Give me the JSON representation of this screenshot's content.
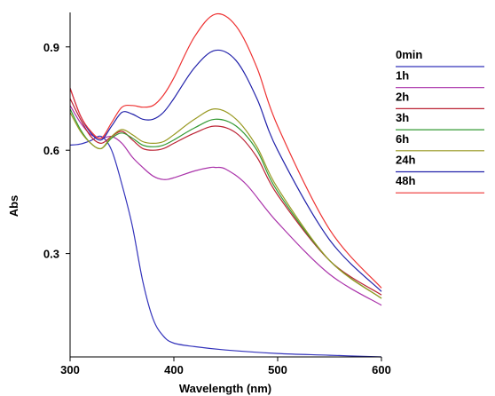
{
  "chart_data": {
    "type": "line",
    "title": "",
    "xlabel": "Wavelength (nm)",
    "ylabel": "Abs",
    "xlim": [
      300,
      600
    ],
    "ylim": [
      0.0,
      1.0
    ],
    "x_ticks": [
      300,
      400,
      500,
      600
    ],
    "y_ticks": [
      0.3,
      0.6,
      0.9
    ],
    "y_tick_labels": [
      "0.3",
      "0.6",
      "0.9"
    ],
    "grid": false,
    "legend_position": "right",
    "series": [
      {
        "name": "0min",
        "color": "#3333bb",
        "x": [
          300,
          310,
          320,
          330,
          340,
          350,
          360,
          370,
          380,
          390,
          400,
          420,
          450,
          500,
          550,
          600
        ],
        "y": [
          0.615,
          0.618,
          0.628,
          0.64,
          0.6,
          0.5,
          0.38,
          0.22,
          0.11,
          0.06,
          0.04,
          0.03,
          0.02,
          0.01,
          0.005,
          0.0
        ]
      },
      {
        "name": "1h",
        "color": "#aa33aa",
        "x": [
          300,
          310,
          320,
          330,
          340,
          350,
          360,
          370,
          380,
          390,
          400,
          420,
          435,
          440,
          450,
          470,
          500,
          550,
          600
        ],
        "y": [
          0.73,
          0.68,
          0.645,
          0.635,
          0.64,
          0.62,
          0.58,
          0.55,
          0.525,
          0.515,
          0.52,
          0.54,
          0.55,
          0.55,
          0.545,
          0.5,
          0.39,
          0.24,
          0.15
        ]
      },
      {
        "name": "2h",
        "color": "#bb2233",
        "x": [
          300,
          310,
          320,
          330,
          340,
          350,
          360,
          370,
          380,
          390,
          400,
          420,
          440,
          460,
          480,
          500,
          550,
          600
        ],
        "y": [
          0.75,
          0.69,
          0.64,
          0.62,
          0.64,
          0.655,
          0.63,
          0.605,
          0.6,
          0.605,
          0.62,
          0.65,
          0.67,
          0.65,
          0.58,
          0.47,
          0.28,
          0.18
        ]
      },
      {
        "name": "3h",
        "color": "#339933",
        "x": [
          300,
          310,
          320,
          330,
          340,
          350,
          360,
          370,
          380,
          390,
          400,
          420,
          440,
          460,
          480,
          500,
          550,
          600
        ],
        "y": [
          0.72,
          0.66,
          0.62,
          0.605,
          0.635,
          0.65,
          0.635,
          0.615,
          0.61,
          0.615,
          0.63,
          0.665,
          0.69,
          0.67,
          0.6,
          0.48,
          0.28,
          0.17
        ]
      },
      {
        "name": "6h",
        "color": "#999922",
        "x": [
          300,
          310,
          320,
          330,
          340,
          350,
          360,
          370,
          380,
          390,
          400,
          420,
          440,
          460,
          480,
          500,
          550,
          600
        ],
        "y": [
          0.71,
          0.655,
          0.62,
          0.605,
          0.64,
          0.66,
          0.645,
          0.625,
          0.62,
          0.625,
          0.645,
          0.69,
          0.72,
          0.69,
          0.61,
          0.49,
          0.28,
          0.17
        ]
      },
      {
        "name": "24h",
        "color": "#2222aa",
        "x": [
          300,
          310,
          320,
          330,
          340,
          350,
          360,
          370,
          380,
          390,
          400,
          420,
          440,
          460,
          480,
          500,
          550,
          600
        ],
        "y": [
          0.78,
          0.7,
          0.65,
          0.63,
          0.67,
          0.71,
          0.705,
          0.69,
          0.69,
          0.71,
          0.75,
          0.84,
          0.89,
          0.86,
          0.75,
          0.6,
          0.34,
          0.19
        ]
      },
      {
        "name": "48h",
        "color": "#ee3333",
        "x": [
          300,
          310,
          320,
          330,
          340,
          350,
          360,
          370,
          380,
          390,
          400,
          420,
          440,
          460,
          480,
          500,
          550,
          600
        ],
        "y": [
          0.78,
          0.7,
          0.655,
          0.635,
          0.68,
          0.725,
          0.73,
          0.725,
          0.73,
          0.76,
          0.81,
          0.93,
          0.995,
          0.96,
          0.84,
          0.67,
          0.37,
          0.2
        ]
      }
    ]
  }
}
